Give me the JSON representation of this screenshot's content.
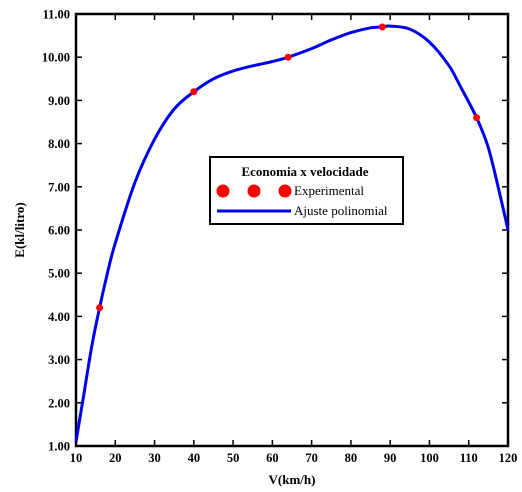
{
  "chart_data": {
    "type": "scatter",
    "title": "",
    "xlabel": "V(km/h)",
    "ylabel": "E(kl/litro)",
    "xlim": [
      10,
      120
    ],
    "ylim": [
      1.0,
      11.0
    ],
    "xticks": [
      10,
      20,
      30,
      40,
      50,
      60,
      70,
      80,
      90,
      100,
      110,
      120
    ],
    "yticks": [
      "1.00",
      "2.00",
      "3.00",
      "4.00",
      "5.00",
      "6.00",
      "7.00",
      "8.00",
      "9.00",
      "10.00",
      "11.00"
    ],
    "grid": false,
    "legend": {
      "title": "Economia x velocidade",
      "placement": "center"
    },
    "series": [
      {
        "name": "Experimental",
        "kind": "points",
        "color": "#ff0000",
        "x": [
          16,
          40,
          64,
          88,
          112
        ],
        "y": [
          4.2,
          9.2,
          10.0,
          10.7,
          8.6
        ]
      },
      {
        "name": "Ajuste polinomial",
        "kind": "line",
        "color": "#0000ee",
        "x": [
          10,
          12,
          14,
          16,
          18,
          20,
          25,
          30,
          35,
          40,
          45,
          50,
          55,
          60,
          64,
          70,
          75,
          80,
          85,
          88,
          90,
          95,
          100,
          105,
          108,
          112,
          115,
          118,
          120
        ],
        "y": [
          1.1,
          2.2,
          3.3,
          4.2,
          5.0,
          5.7,
          7.1,
          8.1,
          8.8,
          9.2,
          9.5,
          9.68,
          9.8,
          9.9,
          10.0,
          10.2,
          10.4,
          10.57,
          10.68,
          10.7,
          10.72,
          10.65,
          10.35,
          9.8,
          9.3,
          8.6,
          7.9,
          6.8,
          6.0
        ]
      }
    ]
  }
}
